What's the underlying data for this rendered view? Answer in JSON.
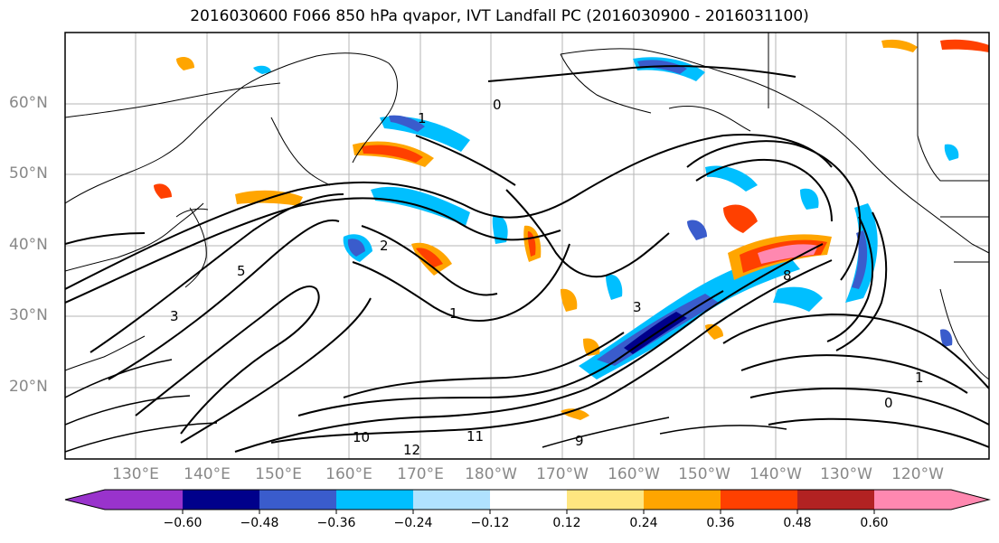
{
  "title": "2016030600 F066 850 hPa qvapor, IVT Landfall PC (2016030900 - 2016031100)",
  "lat_labels": [
    "60°N",
    "50°N",
    "40°N",
    "30°N",
    "20°N"
  ],
  "lon_labels": [
    "130°E",
    "140°E",
    "150°E",
    "160°E",
    "170°E",
    "180°W",
    "170°W",
    "160°W",
    "150°W",
    "140°W",
    "130°W",
    "120°W"
  ],
  "colorbar": {
    "ticks": [
      "−0.60",
      "−0.48",
      "−0.36",
      "−0.24",
      "−0.12",
      "0.12",
      "0.24",
      "0.36",
      "0.48",
      "0.60"
    ],
    "colors": [
      "#9933cc",
      "#00008b",
      "#3a5ccc",
      "#00bfff",
      "#b0e2ff",
      "#ffffff",
      "#ffe680",
      "#ffa500",
      "#ff4000",
      "#b22222",
      "#ff88b0"
    ],
    "extend": "both"
  },
  "contour_labels": [
    "0",
    "0",
    "1",
    "1",
    "2",
    "3",
    "3",
    "5",
    "8",
    "9",
    "10",
    "11",
    "12",
    "1"
  ]
}
